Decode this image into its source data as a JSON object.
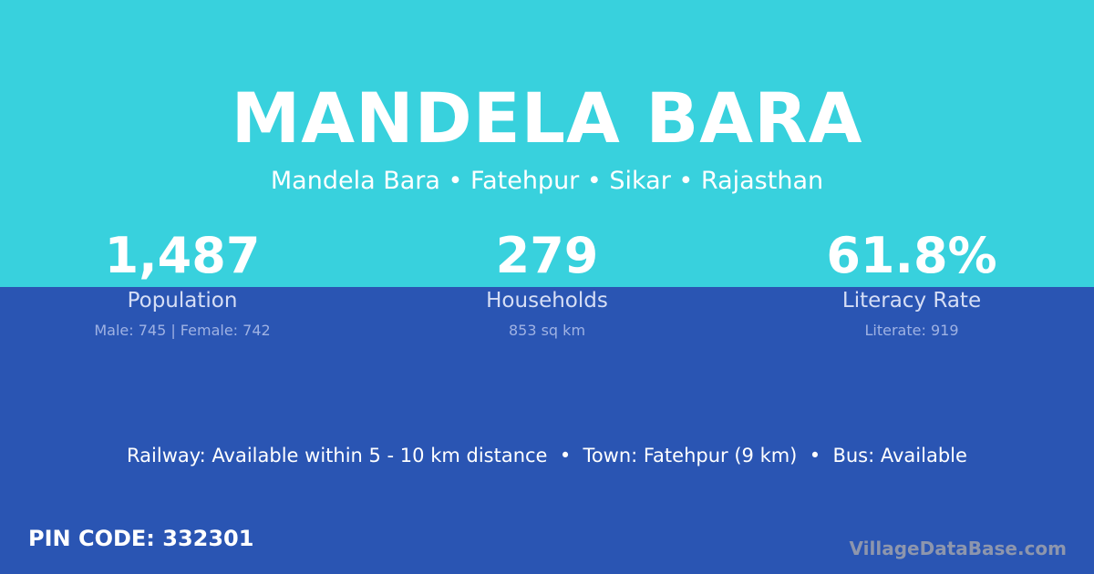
{
  "header": {
    "title": "MANDELA BARA",
    "subtitle": "Mandela Bara • Fatehpur • Sikar • Rajasthan"
  },
  "stats": [
    {
      "value": "1,487",
      "label": "Population",
      "sub": "Male: 745 | Female: 742"
    },
    {
      "value": "279",
      "label": "Households",
      "sub": "853 sq km"
    },
    {
      "value": "61.8%",
      "label": "Literacy Rate",
      "sub": "Literate: 919"
    }
  ],
  "info": "Railway: Available within 5 - 10 km distance  •  Town: Fatehpur (9 km)  •  Bus: Available",
  "pin": "PIN CODE: 332301",
  "brand": "VillageDataBase.com",
  "colors": {
    "top": "#38d1dd",
    "bottom": "#2a55b3"
  }
}
